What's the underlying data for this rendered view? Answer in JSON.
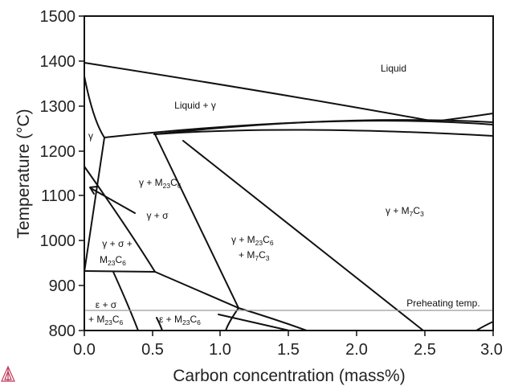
{
  "axes": {
    "x_title": "Carbon concentration (mass%)",
    "y_title": "Temperature (°C)",
    "x_ticks": [
      "0.0",
      "0.5",
      "1.0",
      "1.5",
      "2.0",
      "2.5",
      "3.0"
    ],
    "y_ticks": [
      "800",
      "900",
      "1000",
      "1100",
      "1200",
      "1300",
      "1400",
      "1500"
    ],
    "x_range": [
      0,
      3
    ],
    "y_range": [
      800,
      1500
    ]
  },
  "regions": {
    "liquid": "Liquid",
    "liquid_gamma": "Liquid + γ",
    "gamma": "γ",
    "gamma_m23c6_main": "γ + M",
    "gamma_sigma": "γ + σ",
    "gamma_sigma_m23c6_line1": "γ + σ +",
    "gamma_sigma_m23c6_main": "M",
    "gamma_m23c6_m7c3_line1_main": "γ + M",
    "gamma_m23c6_m7c3_line2_main": "+ M",
    "gamma_m7c3_main": "γ + M",
    "epsilon_sigma_line1": "ε + σ",
    "epsilon_sigma_line2_main": "+ M",
    "epsilon_m23c6_main": "ε  + M",
    "sub_23": "23",
    "sub_6": "6",
    "sub_7": "7",
    "sub_3": "3"
  },
  "annotations": {
    "preheating_label": "Preheating temp.",
    "preheating_temp": 850
  },
  "colors": {
    "line": "#111111",
    "preheat_line": "#9a9a9a",
    "logo": "#c0395a"
  },
  "icons": {
    "logo": "triangle-logo-icon"
  }
}
